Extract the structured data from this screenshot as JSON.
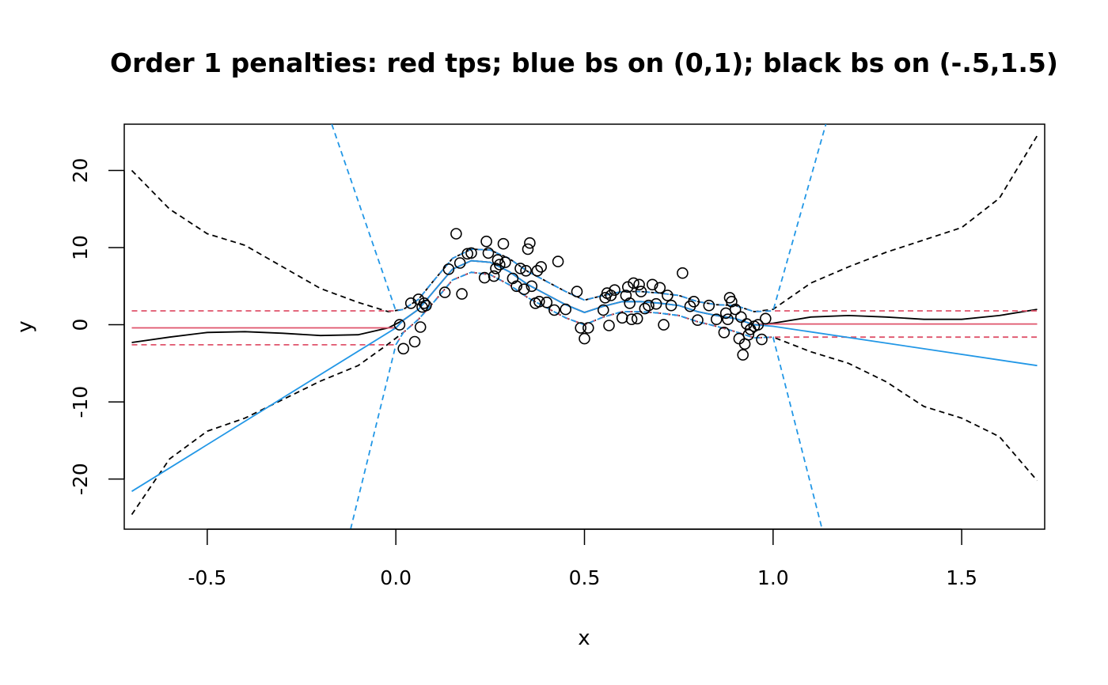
{
  "chart_data": {
    "type": "scatter",
    "title": "Order 1 penalties: red tps; blue bs on (0,1); black bs on (-.5,1.5)",
    "xlabel": "x",
    "ylabel": "y",
    "xlim": [
      -0.72,
      1.72
    ],
    "ylim": [
      -26.5,
      26.0
    ],
    "xticks": [
      -0.5,
      0.0,
      0.5,
      1.0,
      1.5
    ],
    "xtick_labels": [
      "-0.5",
      "0.0",
      "0.5",
      "1.0",
      "1.5"
    ],
    "yticks": [
      -20,
      -10,
      0,
      10,
      20
    ],
    "ytick_labels": [
      "-20",
      "-10",
      "0",
      "10",
      "20"
    ],
    "grid": false,
    "colors": {
      "black": "#000000",
      "red": "#df536b",
      "blue": "#2297e6"
    },
    "points": {
      "name": "data",
      "x": [
        0.01,
        0.02,
        0.04,
        0.05,
        0.06,
        0.065,
        0.07,
        0.075,
        0.08,
        0.13,
        0.14,
        0.16,
        0.17,
        0.175,
        0.19,
        0.2,
        0.235,
        0.24,
        0.245,
        0.26,
        0.265,
        0.27,
        0.275,
        0.285,
        0.29,
        0.31,
        0.32,
        0.33,
        0.34,
        0.345,
        0.35,
        0.355,
        0.36,
        0.37,
        0.375,
        0.38,
        0.385,
        0.4,
        0.42,
        0.43,
        0.45,
        0.48,
        0.49,
        0.5,
        0.51,
        0.55,
        0.555,
        0.56,
        0.565,
        0.57,
        0.58,
        0.6,
        0.61,
        0.615,
        0.62,
        0.625,
        0.63,
        0.64,
        0.645,
        0.65,
        0.66,
        0.67,
        0.68,
        0.69,
        0.7,
        0.71,
        0.72,
        0.73,
        0.76,
        0.78,
        0.79,
        0.8,
        0.83,
        0.85,
        0.87,
        0.875,
        0.88,
        0.885,
        0.89,
        0.9,
        0.91,
        0.915,
        0.92,
        0.925,
        0.93,
        0.935,
        0.94,
        0.95,
        0.96,
        0.97,
        0.98
      ],
      "y": [
        0.0,
        -3.1,
        2.8,
        -2.2,
        3.3,
        -0.3,
        2.3,
        2.8,
        2.5,
        4.2,
        7.2,
        11.8,
        8.0,
        4.0,
        9.2,
        9.3,
        6.1,
        10.8,
        9.3,
        6.3,
        7.3,
        8.4,
        7.8,
        10.5,
        8.1,
        6.0,
        5.0,
        7.3,
        4.6,
        7.0,
        9.8,
        10.6,
        5.0,
        2.8,
        7.0,
        3.0,
        7.5,
        2.9,
        1.9,
        8.2,
        2.0,
        4.3,
        -0.4,
        -1.8,
        -0.4,
        1.9,
        3.5,
        4.1,
        -0.1,
        3.8,
        4.5,
        0.9,
        3.8,
        4.9,
        2.8,
        0.7,
        5.4,
        0.8,
        5.2,
        4.3,
        2.1,
        2.5,
        5.2,
        2.7,
        4.8,
        0.0,
        3.8,
        2.5,
        6.7,
        2.4,
        3.0,
        0.6,
        2.5,
        0.7,
        -1.0,
        1.5,
        0.7,
        3.5,
        3.0,
        2.0,
        -1.8,
        1.0,
        -3.9,
        -2.5,
        0.1,
        -1.3,
        -0.6,
        -0.2,
        0.0,
        -1.9,
        0.8
      ]
    },
    "series": [
      {
        "color": "black",
        "dash": "solid",
        "x": [
          -0.7,
          -0.6,
          -0.5,
          -0.4,
          -0.3,
          -0.2,
          -0.1,
          -0.02,
          0.02,
          0.06,
          0.1,
          0.15,
          0.2,
          0.25,
          0.3,
          0.35,
          0.4,
          0.45,
          0.5,
          0.55,
          0.6,
          0.65,
          0.7,
          0.75,
          0.8,
          0.85,
          0.9,
          0.95,
          1.0,
          1.1,
          1.2,
          1.3,
          1.4,
          1.5,
          1.6,
          1.7
        ],
        "y": [
          -2.3,
          -1.6,
          -1.0,
          -0.9,
          -1.1,
          -1.4,
          -1.3,
          -0.4,
          0.6,
          2.0,
          4.3,
          7.2,
          8.3,
          8.1,
          6.9,
          5.2,
          3.9,
          2.6,
          1.6,
          2.4,
          3.0,
          3.0,
          2.8,
          2.5,
          1.7,
          1.2,
          0.8,
          0.0,
          0.2,
          1.0,
          1.2,
          1.0,
          0.7,
          0.7,
          1.2,
          2.0
        ]
      },
      {
        "color": "black",
        "dash": "dashed",
        "x": [
          -0.7,
          -0.6,
          -0.5,
          -0.4,
          -0.3,
          -0.2,
          -0.1,
          -0.02,
          0.02,
          0.06,
          0.1,
          0.15,
          0.2,
          0.25,
          0.3,
          0.35,
          0.4,
          0.45,
          0.5,
          0.55,
          0.6,
          0.65,
          0.7,
          0.75,
          0.8,
          0.85,
          0.9,
          0.95,
          1.0,
          1.1,
          1.2,
          1.3,
          1.4,
          1.5,
          1.6,
          1.7
        ],
        "y": [
          20.0,
          15.0,
          11.8,
          10.3,
          7.5,
          4.7,
          2.9,
          1.7,
          2.0,
          3.3,
          5.7,
          8.6,
          9.8,
          9.7,
          8.6,
          6.9,
          5.6,
          4.3,
          3.2,
          3.8,
          4.3,
          4.3,
          4.1,
          3.8,
          3.0,
          2.6,
          2.5,
          1.7,
          2.0,
          5.4,
          7.5,
          9.4,
          11.0,
          12.6,
          16.4,
          24.5
        ]
      },
      {
        "color": "black",
        "dash": "dashed",
        "x": [
          -0.7,
          -0.6,
          -0.5,
          -0.4,
          -0.3,
          -0.2,
          -0.1,
          -0.02,
          0.02,
          0.06,
          0.1,
          0.15,
          0.2,
          0.25,
          0.3,
          0.35,
          0.4,
          0.45,
          0.5,
          0.55,
          0.6,
          0.65,
          0.7,
          0.75,
          0.8,
          0.85,
          0.9,
          0.95,
          1.0,
          1.1,
          1.2,
          1.3,
          1.4,
          1.5,
          1.6,
          1.7
        ],
        "y": [
          -24.6,
          -17.4,
          -13.8,
          -12.1,
          -9.7,
          -7.3,
          -5.3,
          -2.5,
          -1.0,
          0.7,
          2.9,
          5.8,
          6.8,
          6.5,
          5.2,
          3.5,
          2.2,
          0.9,
          0.0,
          1.0,
          1.7,
          1.7,
          1.5,
          1.2,
          0.4,
          -0.2,
          -0.9,
          -1.7,
          -1.6,
          -3.5,
          -5.0,
          -7.4,
          -10.6,
          -12.1,
          -14.5,
          -20.2
        ]
      },
      {
        "color": "red",
        "dash": "solid",
        "x": [
          -0.7,
          0.0,
          0.02,
          0.06,
          0.1,
          0.15,
          0.2,
          0.25,
          0.3,
          0.35,
          0.4,
          0.45,
          0.5,
          0.55,
          0.6,
          0.65,
          0.7,
          0.75,
          0.8,
          0.85,
          0.9,
          0.95,
          1.0,
          1.7
        ],
        "y": [
          -0.4,
          -0.4,
          0.6,
          2.0,
          4.3,
          7.2,
          8.3,
          8.1,
          6.9,
          5.2,
          3.9,
          2.6,
          1.6,
          2.4,
          3.0,
          3.0,
          2.8,
          2.5,
          1.7,
          1.2,
          0.8,
          0.0,
          0.1,
          0.1
        ]
      },
      {
        "color": "red",
        "dash": "dashed",
        "x": [
          -0.7,
          0.0,
          0.02,
          0.06,
          0.1,
          0.15,
          0.2,
          0.25,
          0.3,
          0.35,
          0.4,
          0.45,
          0.5,
          0.55,
          0.6,
          0.65,
          0.7,
          0.75,
          0.8,
          0.85,
          0.9,
          0.95,
          1.0,
          1.7
        ],
        "y": [
          1.8,
          1.8,
          2.0,
          3.3,
          5.7,
          8.6,
          9.8,
          9.7,
          8.6,
          6.9,
          5.6,
          4.3,
          3.2,
          3.8,
          4.3,
          4.3,
          4.1,
          3.8,
          3.0,
          2.6,
          2.5,
          1.7,
          1.8,
          1.8
        ]
      },
      {
        "color": "red",
        "dash": "dashed",
        "x": [
          -0.7,
          0.0,
          0.02,
          0.06,
          0.1,
          0.15,
          0.2,
          0.25,
          0.3,
          0.35,
          0.4,
          0.45,
          0.5,
          0.55,
          0.6,
          0.65,
          0.7,
          0.75,
          0.8,
          0.85,
          0.9,
          0.95,
          1.0,
          1.7
        ],
        "y": [
          -2.6,
          -2.6,
          -1.0,
          0.7,
          2.9,
          5.8,
          6.8,
          6.5,
          5.2,
          3.5,
          2.2,
          0.9,
          0.0,
          1.0,
          1.7,
          1.7,
          1.5,
          1.2,
          0.4,
          -0.2,
          -0.9,
          -1.7,
          -1.6,
          -1.6
        ]
      },
      {
        "color": "blue",
        "dash": "solid",
        "x": [
          -0.7,
          0.0,
          0.02,
          0.06,
          0.1,
          0.15,
          0.2,
          0.25,
          0.3,
          0.35,
          0.4,
          0.45,
          0.5,
          0.55,
          0.6,
          0.65,
          0.7,
          0.75,
          0.8,
          0.85,
          0.9,
          0.95,
          1.0,
          1.7
        ],
        "y": [
          -21.6,
          -0.4,
          0.6,
          2.0,
          4.3,
          7.2,
          8.3,
          8.1,
          6.9,
          5.2,
          3.9,
          2.6,
          1.6,
          2.4,
          3.0,
          3.0,
          2.8,
          2.5,
          1.7,
          1.2,
          0.8,
          0.0,
          -0.2,
          -5.3
        ]
      },
      {
        "color": "blue",
        "dash": "dashed",
        "x": [
          -0.17,
          0.0,
          0.02,
          0.06,
          0.1,
          0.15,
          0.2,
          0.25,
          0.3,
          0.35,
          0.4,
          0.45,
          0.5,
          0.55,
          0.6,
          0.65,
          0.7,
          0.75,
          0.8,
          0.85,
          0.9,
          0.95,
          1.0,
          1.14
        ],
        "y": [
          26.0,
          1.8,
          2.0,
          3.3,
          5.7,
          8.6,
          9.8,
          9.7,
          8.6,
          6.9,
          5.6,
          4.3,
          3.2,
          3.8,
          4.3,
          4.3,
          4.1,
          3.8,
          3.0,
          2.6,
          2.5,
          1.7,
          1.8,
          26.0
        ]
      },
      {
        "color": "blue",
        "dash": "dashed",
        "x": [
          -0.12,
          0.0,
          0.02,
          0.06,
          0.1,
          0.15,
          0.2,
          0.25,
          0.3,
          0.35,
          0.4,
          0.45,
          0.5,
          0.55,
          0.6,
          0.65,
          0.7,
          0.75,
          0.8,
          0.85,
          0.9,
          0.95,
          1.0,
          1.13
        ],
        "y": [
          -26.5,
          -2.6,
          -1.0,
          0.7,
          2.9,
          5.8,
          6.8,
          6.5,
          5.2,
          3.5,
          2.2,
          0.9,
          0.0,
          1.0,
          1.7,
          1.7,
          1.5,
          1.2,
          0.4,
          -0.2,
          -0.9,
          -1.7,
          -1.6,
          -26.5
        ]
      }
    ]
  }
}
